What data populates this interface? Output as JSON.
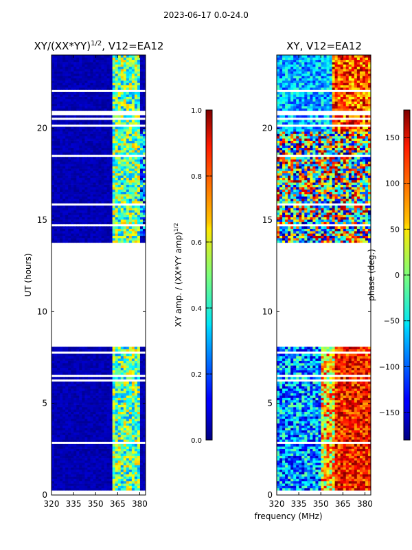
{
  "figure_title": "2023-06-17 0.0-24.0",
  "chart_data": [
    {
      "type": "heatmap",
      "title": "XY/(XX*YY)^{1/2}, V12=EA12",
      "title_main": "XY/(XX*YY)",
      "title_sup": "1/2",
      "title_rest": ", V12=EA12",
      "xlabel": "frequency (MHz)",
      "ylabel": "UT (hours)",
      "xlim": [
        320,
        384
      ],
      "ylim": [
        0,
        24
      ],
      "xticks": [
        320,
        335,
        350,
        365,
        380
      ],
      "yticks": [
        0,
        5,
        10,
        15,
        20
      ],
      "data_gap_hours": [
        8.05,
        13.8
      ],
      "colorbar": {
        "label": "XY amp. / (XX*YY amp)^{1/2}",
        "label_main": "XY amp. / (XX*YY amp)",
        "label_sup": "1/2",
        "range": [
          0.0,
          1.0
        ],
        "ticks": [
          "0.0",
          "0.2",
          "0.4",
          "0.6",
          "0.8",
          "1.0"
        ],
        "colormap": "jet"
      }
    },
    {
      "type": "heatmap",
      "title": "XY, V12=EA12",
      "xlabel": "frequency (MHz)",
      "xlim": [
        320,
        384
      ],
      "ylim": [
        0,
        24
      ],
      "xticks": [
        320,
        335,
        350,
        365,
        380
      ],
      "yticks": [
        0,
        5,
        10,
        15,
        20
      ],
      "data_gap_hours": [
        8.05,
        13.8
      ],
      "colorbar": {
        "label": "phase (deg.)",
        "range": [
          -180,
          180
        ],
        "ticks": [
          "−150",
          "−100",
          "−50",
          "0",
          "50",
          "100",
          "150"
        ],
        "colormap": "jet"
      }
    }
  ]
}
